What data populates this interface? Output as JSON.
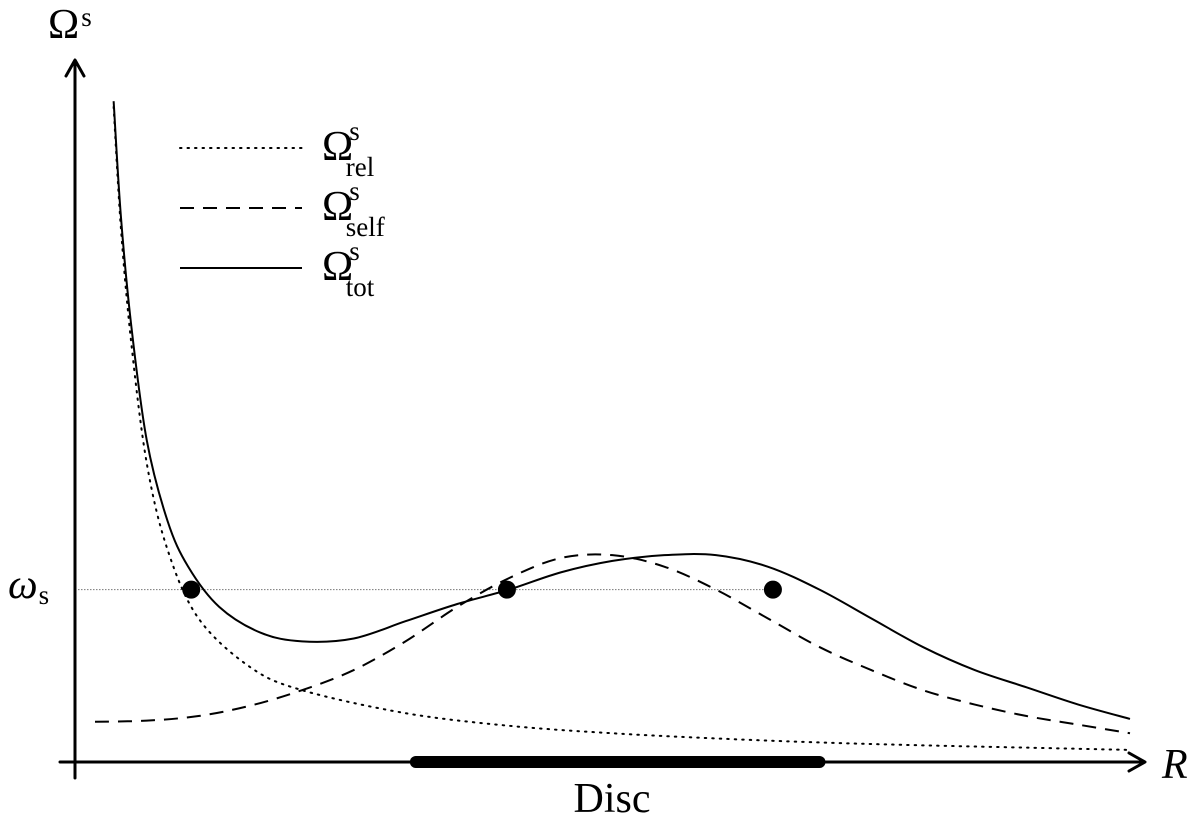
{
  "chart_data": {
    "type": "line",
    "title": "",
    "xlabel": "R",
    "ylabel": "Ω",
    "ylabel_sup": "s",
    "grid": false,
    "legend_position": "top-left",
    "hline": {
      "label": "ω",
      "label_sub": "s",
      "value": 0.3
    },
    "region": {
      "label": "Disc",
      "x_start": 3.1,
      "x_end": 7.0
    },
    "xlim": [
      0,
      10
    ],
    "ylim": [
      0,
      1.18
    ],
    "series": [
      {
        "name": "Ω",
        "name_sup": "s",
        "name_sub": "rel",
        "style": "dotted",
        "x": [
          0.18,
          0.25,
          0.35,
          0.5,
          0.7,
          1.0,
          1.5,
          2.0,
          3.0,
          4.0,
          5.0,
          6.0,
          7.0,
          8.0,
          9.0,
          10.0
        ],
        "y": [
          1.14,
          0.93,
          0.73,
          0.52,
          0.37,
          0.25,
          0.165,
          0.125,
          0.085,
          0.063,
          0.05,
          0.041,
          0.034,
          0.029,
          0.025,
          0.021
        ]
      },
      {
        "name": "Ω",
        "name_sup": "s",
        "name_sub": "self",
        "style": "dashed",
        "x": [
          0.0,
          0.5,
          1.0,
          1.5,
          2.0,
          2.5,
          3.0,
          3.5,
          4.0,
          4.5,
          5.0,
          5.5,
          6.0,
          6.5,
          7.0,
          7.5,
          8.0,
          8.5,
          9.0,
          9.5,
          10.0
        ],
        "y": [
          0.07,
          0.072,
          0.08,
          0.098,
          0.125,
          0.16,
          0.21,
          0.27,
          0.32,
          0.355,
          0.36,
          0.34,
          0.3,
          0.25,
          0.2,
          0.16,
          0.125,
          0.1,
          0.08,
          0.065,
          0.05
        ]
      },
      {
        "name": "Ω",
        "name_sup": "s",
        "name_sub": "tot",
        "style": "solid",
        "x": [
          0.18,
          0.25,
          0.35,
          0.5,
          0.7,
          0.9,
          1.2,
          1.6,
          2.0,
          2.5,
          3.0,
          3.5,
          4.0,
          4.5,
          5.0,
          5.5,
          6.0,
          6.5,
          7.0,
          7.5,
          8.0,
          8.5,
          9.0,
          9.5,
          10.0
        ],
        "y": [
          1.15,
          0.95,
          0.76,
          0.56,
          0.42,
          0.34,
          0.27,
          0.225,
          0.21,
          0.215,
          0.245,
          0.275,
          0.3,
          0.33,
          0.35,
          0.36,
          0.36,
          0.34,
          0.3,
          0.25,
          0.2,
          0.16,
          0.13,
          0.1,
          0.075
        ]
      }
    ],
    "markers": [
      {
        "x": 0.93,
        "y": 0.3
      },
      {
        "x": 3.98,
        "y": 0.3
      },
      {
        "x": 6.55,
        "y": 0.3
      }
    ]
  }
}
